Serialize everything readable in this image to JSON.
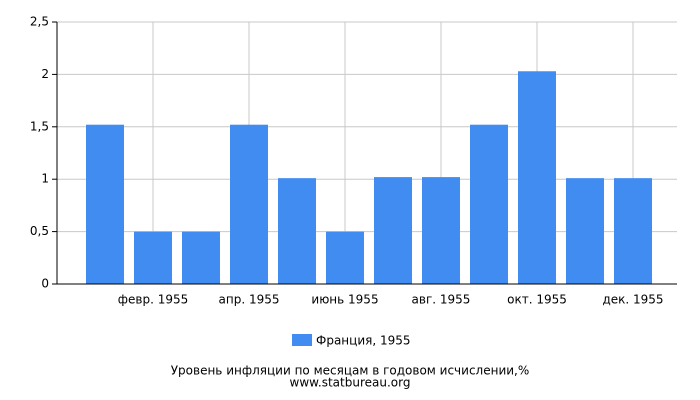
{
  "chart_data": {
    "type": "bar",
    "categories": [
      null,
      "февр. 1955",
      null,
      "апр. 1955",
      null,
      "июнь 1955",
      null,
      "авг. 1955",
      null,
      "окт. 1955",
      null,
      "дек. 1955"
    ],
    "series": [
      {
        "name": "Франция, 1955",
        "color": "#418cf0",
        "values": [
          1.52,
          0.5,
          0.5,
          1.52,
          1.01,
          0.5,
          1.02,
          1.02,
          1.52,
          2.03,
          1.01,
          1.01
        ]
      }
    ],
    "ylim": [
      0,
      2.5
    ],
    "yticks": [
      0,
      {
        "value": 0.5,
        "label": "0,5"
      },
      1,
      {
        "value": 1.5,
        "label": "1,5"
      },
      2,
      {
        "value": 2.5,
        "label": "2,5"
      }
    ],
    "grid": true,
    "caption": "Уровень инфляции по месяцам в годовом исчислении,%",
    "source": "www.statbureau.org"
  }
}
